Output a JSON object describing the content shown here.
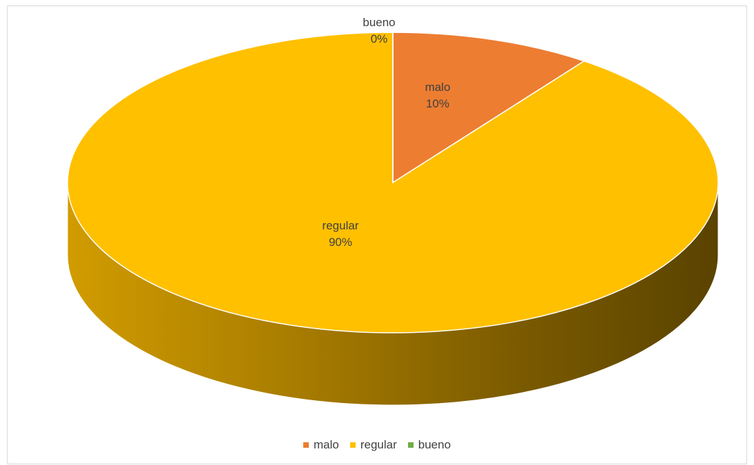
{
  "chart_data": {
    "type": "pie",
    "style": "3d",
    "categories": [
      "malo",
      "regular",
      "bueno"
    ],
    "values": [
      10,
      90,
      0
    ],
    "value_labels": [
      "10%",
      "90%",
      "0%"
    ],
    "colors": [
      "#ED7D31",
      "#FFC000",
      "#70AD47"
    ],
    "legend_position": "bottom"
  }
}
